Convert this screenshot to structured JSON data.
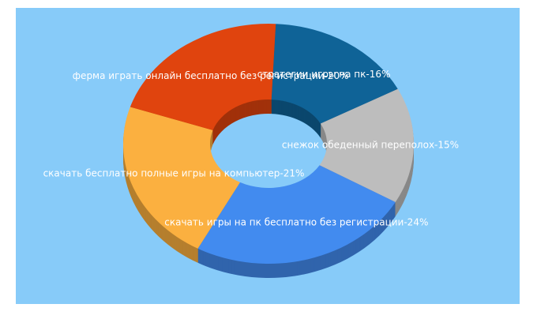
{
  "chart_data": {
    "type": "donut3d",
    "labels": [
      "стратегии игры на пк-16%",
      "снежок обеденный переполох-15%",
      "скачать игры на пк бесплатно без регистрации-24%",
      "скачать бесплатно полные игры на компьютер-21%",
      "ферма играть онлайн бесплатно без регистрации-20%"
    ],
    "values": [
      16,
      15,
      24,
      21,
      20
    ],
    "colors": [
      "#0f6397",
      "#bdbdbd",
      "#428bef",
      "#fbb040",
      "#e0440e"
    ]
  }
}
